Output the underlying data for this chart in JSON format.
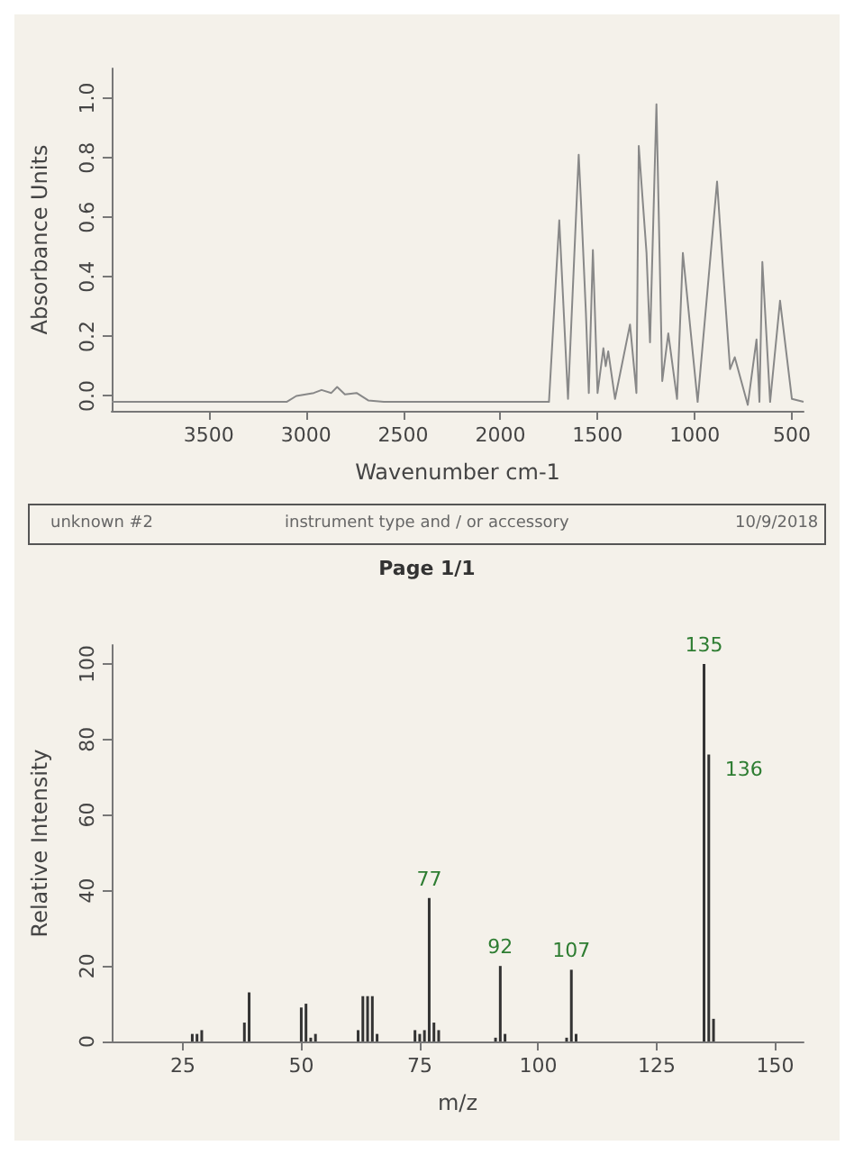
{
  "chart_data": [
    {
      "type": "line",
      "xlabel": "Wavenumber cm-1",
      "ylabel": "Absorbance Units",
      "marker": "none",
      "x": [
        4000,
        3100,
        3050,
        2960,
        2920,
        2870,
        2840,
        2800,
        2740,
        2680,
        2600,
        1750,
        1697,
        1652,
        1597,
        1585,
        1560,
        1545,
        1524,
        1500,
        1470,
        1458,
        1445,
        1410,
        1333,
        1300,
        1288,
        1248,
        1230,
        1197,
        1167,
        1136,
        1091,
        1061,
        985,
        885,
        855,
        818,
        794,
        727,
        682,
        667,
        652,
        612,
        561,
        500,
        440
      ],
      "series": [
        {
          "color": "#888888",
          "values": [
            -0.02,
            -0.02,
            0.0,
            0.01,
            0.02,
            0.01,
            0.03,
            0.005,
            0.01,
            -0.015,
            -0.02,
            -0.02,
            0.59,
            -0.01,
            0.81,
            0.65,
            0.28,
            0.01,
            0.49,
            0.01,
            0.16,
            0.1,
            0.15,
            -0.01,
            0.24,
            0.01,
            0.84,
            0.48,
            0.18,
            0.98,
            0.05,
            0.21,
            -0.01,
            0.48,
            -0.02,
            0.72,
            0.43,
            0.09,
            0.13,
            -0.03,
            0.19,
            -0.02,
            0.45,
            -0.02,
            0.32,
            -0.01,
            -0.02
          ]
        }
      ],
      "xlim": [
        4000,
        440
      ],
      "xticks": [
        3500,
        3000,
        2500,
        2000,
        1500,
        1000,
        500
      ],
      "ylim": [
        -0.05,
        1.1
      ],
      "yticks": [
        {
          "value": 0,
          "label": "0.0"
        },
        {
          "value": 0.2,
          "label": "0.2"
        },
        {
          "value": 0.4,
          "label": "0.4"
        },
        {
          "value": 0.6,
          "label": "0.6"
        },
        {
          "value": 0.8,
          "label": "0.8"
        },
        {
          "value": 1,
          "label": "1.0"
        }
      ],
      "annotations": [
        "unknown #2",
        "instrument type and / or accessory",
        "10/9/2018",
        "Page 1/1"
      ]
    },
    {
      "type": "bar",
      "xlabel": "m/z",
      "ylabel": "Relative Intensity",
      "x": [
        27,
        28,
        29,
        38,
        39,
        50,
        51,
        52,
        53,
        62,
        63,
        64,
        65,
        66,
        74,
        75,
        76,
        77,
        78,
        79,
        91,
        92,
        93,
        106,
        107,
        108,
        135,
        136,
        137
      ],
      "series": [
        {
          "color": "#333333",
          "values": [
            2,
            2,
            3,
            5,
            13,
            9,
            10,
            1,
            2,
            3,
            12,
            12,
            12,
            2,
            3,
            2,
            3,
            38,
            5,
            3,
            1,
            20,
            2,
            1,
            19,
            2,
            100,
            76,
            6
          ]
        }
      ],
      "annotations": [
        {
          "text": "77",
          "x": 77,
          "y": 38
        },
        {
          "text": "92",
          "x": 92,
          "y": 20
        },
        {
          "text": "107",
          "x": 107,
          "y": 19
        },
        {
          "text": "135",
          "x": 135,
          "y": 100
        },
        {
          "text": "136",
          "x": 136,
          "y": 76
        }
      ],
      "xlim": [
        10,
        156
      ],
      "xticks": [
        25,
        50,
        75,
        100,
        125,
        150
      ],
      "ylim": [
        0,
        105
      ],
      "yticks": [
        0,
        20,
        40,
        60,
        80,
        100
      ]
    }
  ]
}
